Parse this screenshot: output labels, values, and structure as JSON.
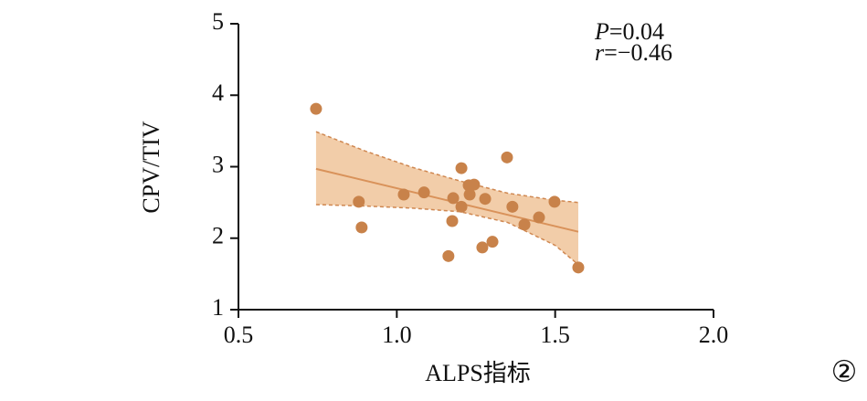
{
  "chart_data": {
    "type": "scatter",
    "x_label": "ALPS指标",
    "y_label": "CPV/TIV",
    "annotations": [
      {
        "var": "P",
        "text": "=0.04"
      },
      {
        "var": "r",
        "text": "=−0.46"
      }
    ],
    "panel_label": "②",
    "xlim": [
      0.5,
      2.0
    ],
    "ylim": [
      1,
      5
    ],
    "xticks": [
      0.5,
      {
        "value": 1,
        "label": "1.0"
      },
      1.5,
      {
        "value": 2,
        "label": "2.0"
      }
    ],
    "yticks": [
      1,
      2,
      3,
      4,
      5
    ],
    "points": {
      "color": "#c8824a",
      "x": [
        0.745,
        0.88,
        0.889,
        1.022,
        1.086,
        1.204,
        1.227,
        1.244,
        1.23,
        1.178,
        1.204,
        1.175,
        1.279,
        1.348,
        1.365,
        1.403,
        1.449,
        1.498,
        1.302,
        1.27,
        1.163,
        1.573
      ],
      "y": [
        3.81,
        2.51,
        2.15,
        2.61,
        2.64,
        2.98,
        2.74,
        2.75,
        2.61,
        2.56,
        2.44,
        2.24,
        2.55,
        3.13,
        2.44,
        2.19,
        2.29,
        2.51,
        1.95,
        1.87,
        1.75,
        1.59
      ]
    },
    "fit": {
      "color": "#d9925a",
      "x": [
        0.745,
        1.573
      ],
      "y": [
        2.97,
        2.09
      ]
    },
    "band": {
      "color": "#f0c49a",
      "line_color": "#cf8750",
      "x": [
        0.745,
        0.9,
        1.05,
        1.2,
        1.35,
        1.5,
        1.573
      ],
      "upper": [
        3.49,
        3.22,
        2.99,
        2.8,
        2.63,
        2.53,
        2.5
      ],
      "lower": [
        2.47,
        2.45,
        2.42,
        2.37,
        2.22,
        1.9,
        1.63
      ]
    }
  }
}
